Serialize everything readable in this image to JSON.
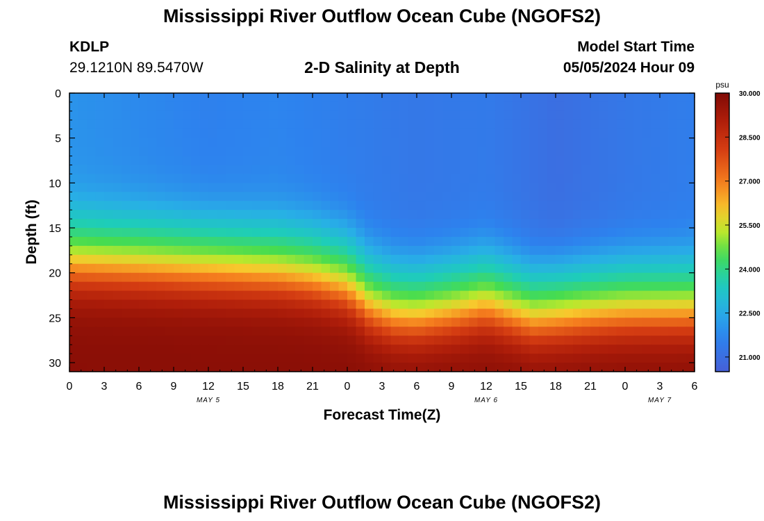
{
  "header": {
    "title": "Mississippi River Outflow Ocean Cube (NGOFS2)",
    "station_id": "KDLP",
    "coordinates": "29.1210N  89.5470W",
    "subtitle": "2-D Salinity at Depth",
    "model_start_label": "Model Start Time",
    "model_start_value": "05/05/2024 Hour 09"
  },
  "footer": {
    "title": "Mississippi River Outflow Ocean Cube (NGOFS2)"
  },
  "chart_data": {
    "type": "heatmap",
    "title": "2-D Salinity at Depth",
    "xlabel": "Forecast Time(Z)",
    "ylabel": "Depth (ft)",
    "x_ticks": [
      "0",
      "3",
      "6",
      "9",
      "12",
      "15",
      "18",
      "21",
      "0",
      "3",
      "6",
      "9",
      "12",
      "15",
      "18",
      "21",
      "0",
      "3",
      "6"
    ],
    "x_hours_range": [
      0,
      54
    ],
    "date_labels": [
      {
        "label": "MAY 5",
        "hour": 12
      },
      {
        "label": "MAY 6",
        "hour": 36
      },
      {
        "label": "MAY 7",
        "hour": 51
      }
    ],
    "y_ticks": [
      0,
      5,
      10,
      15,
      20,
      25,
      30
    ],
    "ylim": [
      0,
      31
    ],
    "colorbar": {
      "unit": "psu",
      "min": 20.5,
      "max": 30.0,
      "ticks": [
        "30.000",
        "28.500",
        "27.000",
        "25.500",
        "24.000",
        "22.500",
        "21.000"
      ]
    },
    "interface_depth_ft": [
      {
        "hour": 0,
        "depth": 18.0
      },
      {
        "hour": 6,
        "depth": 18.3
      },
      {
        "hour": 12,
        "depth": 18.7
      },
      {
        "hour": 18,
        "depth": 19.1
      },
      {
        "hour": 21,
        "depth": 19.6
      },
      {
        "hour": 24,
        "depth": 20.6
      },
      {
        "hour": 26,
        "depth": 22.8
      },
      {
        "hour": 28,
        "depth": 23.8
      },
      {
        "hour": 30,
        "depth": 24.0
      },
      {
        "hour": 33,
        "depth": 23.4
      },
      {
        "hour": 36,
        "depth": 22.6
      },
      {
        "hour": 38,
        "depth": 23.4
      },
      {
        "hour": 40,
        "depth": 24.2
      },
      {
        "hour": 42,
        "depth": 24.0
      },
      {
        "hour": 45,
        "depth": 23.6
      },
      {
        "hour": 48,
        "depth": 23.3
      },
      {
        "hour": 54,
        "depth": 23.2
      }
    ],
    "surface_salinity_psu": [
      {
        "hour": 0,
        "value": 22.0
      },
      {
        "hour": 6,
        "value": 21.8
      },
      {
        "hour": 12,
        "value": 21.6
      },
      {
        "hour": 18,
        "value": 21.7
      },
      {
        "hour": 24,
        "value": 21.5
      },
      {
        "hour": 30,
        "value": 21.3
      },
      {
        "hour": 36,
        "value": 21.4
      },
      {
        "hour": 42,
        "value": 21.0
      },
      {
        "hour": 48,
        "value": 21.3
      },
      {
        "hour": 54,
        "value": 21.5
      }
    ],
    "bottom_salinity_psu": 29.8
  }
}
